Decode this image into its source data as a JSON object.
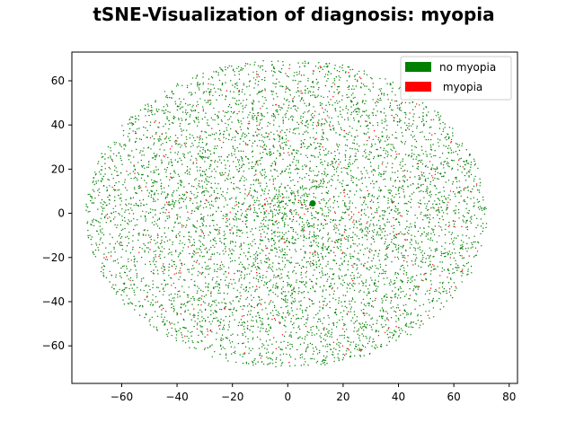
{
  "chart_data": {
    "type": "scatter",
    "title": "tSNE-Visualization of diagnosis: myopia",
    "xlabel": "",
    "ylabel": "",
    "xlim": [
      -78,
      83
    ],
    "ylim": [
      -77,
      73
    ],
    "xticks": [
      -60,
      -40,
      -20,
      0,
      20,
      40,
      60,
      80
    ],
    "yticks": [
      -60,
      -40,
      -20,
      0,
      20,
      40,
      60
    ],
    "grid": false,
    "legend_position": "top-right",
    "series": [
      {
        "name": "no myopia",
        "color": "#008000",
        "description_points": "approximately 6000 points forming a disc roughly centered at (0, 0), x range about -73 to 72, y range about -70 to 70",
        "approx_count": 6000,
        "x_range": [
          -73,
          72
        ],
        "y_range": [
          -70,
          70
        ]
      },
      {
        "name": " myopia",
        "color": "#ff0000",
        "approx_count": 400,
        "x_range": [
          -70,
          70
        ],
        "y_range": [
          -68,
          68
        ]
      }
    ],
    "highlight_point": {
      "x": 9,
      "y": 4.5,
      "color": "#008000"
    }
  }
}
